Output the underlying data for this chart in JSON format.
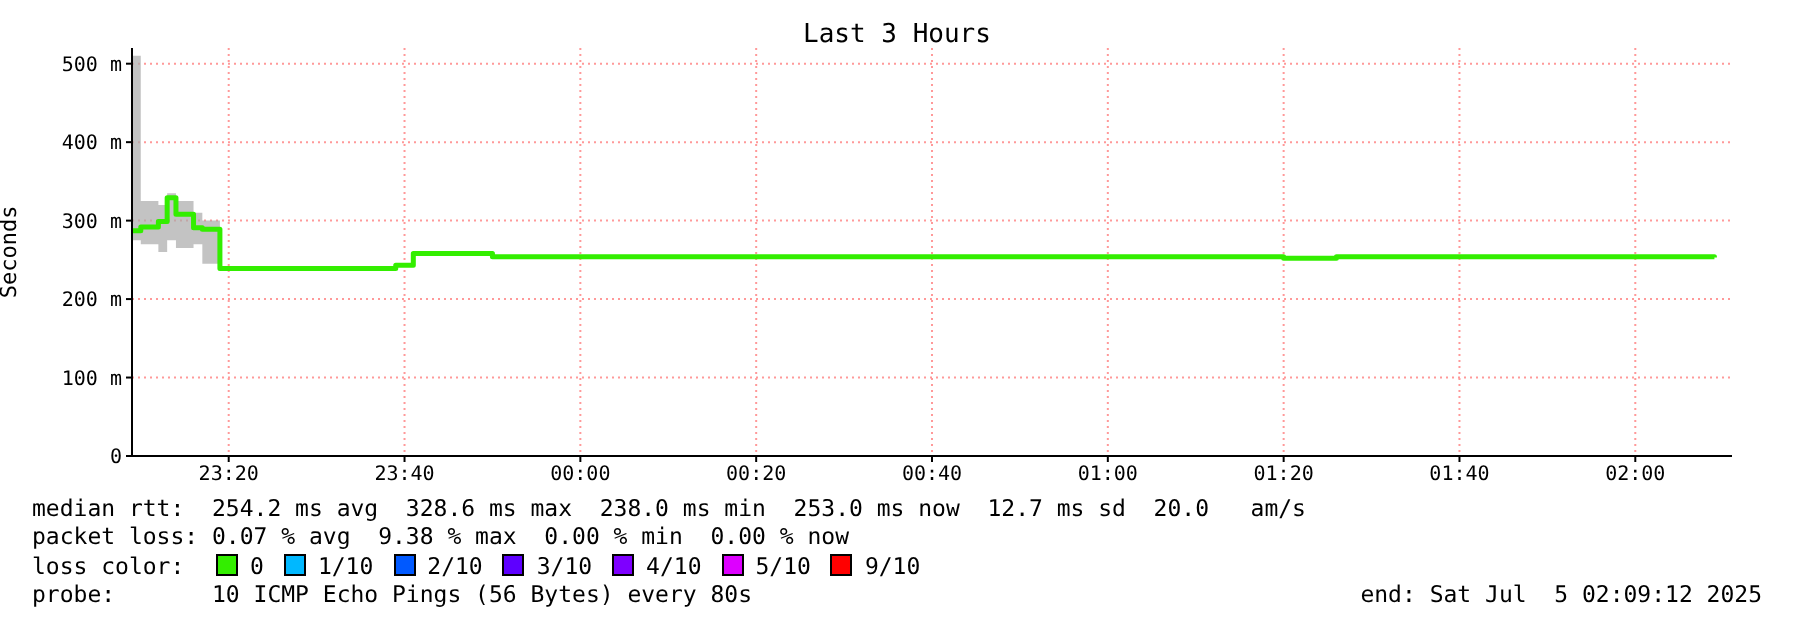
{
  "chart_data": {
    "type": "step",
    "title": "Last 3 Hours",
    "ylabel": "Seconds",
    "x": [
      "2025-07-04T23:09",
      "2025-07-04T23:10",
      "2025-07-04T23:12",
      "2025-07-04T23:13",
      "2025-07-04T23:14",
      "2025-07-04T23:16",
      "2025-07-04T23:17",
      "2025-07-04T23:19",
      "2025-07-04T23:39",
      "2025-07-04T23:41",
      "2025-07-04T23:50",
      "2025-07-05T01:20",
      "2025-07-05T01:26",
      "2025-07-05T02:09"
    ],
    "series": [
      {
        "name": "0",
        "color": "#33ee00",
        "values": [
          287,
          292,
          299,
          329,
          308,
          291,
          289,
          239,
          243,
          258,
          254,
          252,
          254,
          253
        ],
        "lower": [
          275,
          270,
          260,
          275,
          265,
          270,
          245,
          238,
          null,
          null,
          null,
          null,
          null,
          null
        ],
        "upper": [
          510,
          325,
          320,
          335,
          325,
          310,
          300,
          240,
          null,
          null,
          null,
          null,
          null,
          null
        ]
      },
      {
        "name": "1/10",
        "color": "#00b8ff",
        "values": [
          null,
          null,
          null,
          null,
          null,
          null,
          null,
          null,
          null,
          null,
          null,
          null,
          null,
          null
        ]
      },
      {
        "name": "2/10",
        "color": "#0059ff",
        "values": [
          null,
          null,
          null,
          null,
          null,
          null,
          null,
          null,
          null,
          null,
          null,
          null,
          null,
          null
        ]
      },
      {
        "name": "3/10",
        "color": "#5e00ff",
        "values": [
          null,
          null,
          null,
          null,
          null,
          null,
          null,
          null,
          null,
          null,
          null,
          null,
          null,
          null
        ]
      },
      {
        "name": "4/10",
        "color": "#7e00ff",
        "values": [
          null,
          null,
          null,
          null,
          null,
          null,
          null,
          null,
          null,
          null,
          null,
          null,
          null,
          null
        ]
      },
      {
        "name": "5/10",
        "color": "#dd00ff",
        "values": [
          null,
          null,
          null,
          null,
          null,
          null,
          null,
          null,
          null,
          null,
          null,
          null,
          null,
          null
        ]
      },
      {
        "name": "9/10",
        "color": "#ff0000",
        "values": [
          null,
          null,
          null,
          null,
          null,
          null,
          null,
          null,
          null,
          null,
          null,
          null,
          null,
          null
        ]
      }
    ],
    "legend": "bottom",
    "legend_title": "loss color:",
    "xlim": [
      "2025-07-04T23:09",
      "2025-07-05T02:11"
    ],
    "xticks": [
      {
        "value": "2025-07-04T23:20",
        "label": "23:20"
      },
      {
        "value": "2025-07-04T23:40",
        "label": "23:40"
      },
      {
        "value": "2025-07-05T00:00",
        "label": "00:00"
      },
      {
        "value": "2025-07-05T00:20",
        "label": "00:20"
      },
      {
        "value": "2025-07-05T00:40",
        "label": "00:40"
      },
      {
        "value": "2025-07-05T01:00",
        "label": "01:00"
      },
      {
        "value": "2025-07-05T01:20",
        "label": "01:20"
      },
      {
        "value": "2025-07-05T01:40",
        "label": "01:40"
      },
      {
        "value": "2025-07-05T02:00",
        "label": "02:00"
      }
    ],
    "ylim": [
      0,
      520
    ],
    "yticks": [
      0,
      {
        "value": 100,
        "label": "100 m"
      },
      {
        "value": 200,
        "label": "200 m"
      },
      {
        "value": 300,
        "label": "300 m"
      },
      {
        "value": 400,
        "label": "400 m"
      },
      {
        "value": 500,
        "label": "500 m"
      }
    ],
    "grid": true,
    "annotations": [
      "median rtt:  254.2 ms avg  328.6 ms max  238.0 ms min  253.0 ms now  12.7 ms sd  20.0   am/s",
      "packet loss: 0.07 % avg  9.38 % max  0.00 % min  0.00 % now",
      "probe:       10 ICMP Echo Pings (56 Bytes) every 80s",
      "end: Sat Jul  5 02:09:12 2025"
    ]
  }
}
